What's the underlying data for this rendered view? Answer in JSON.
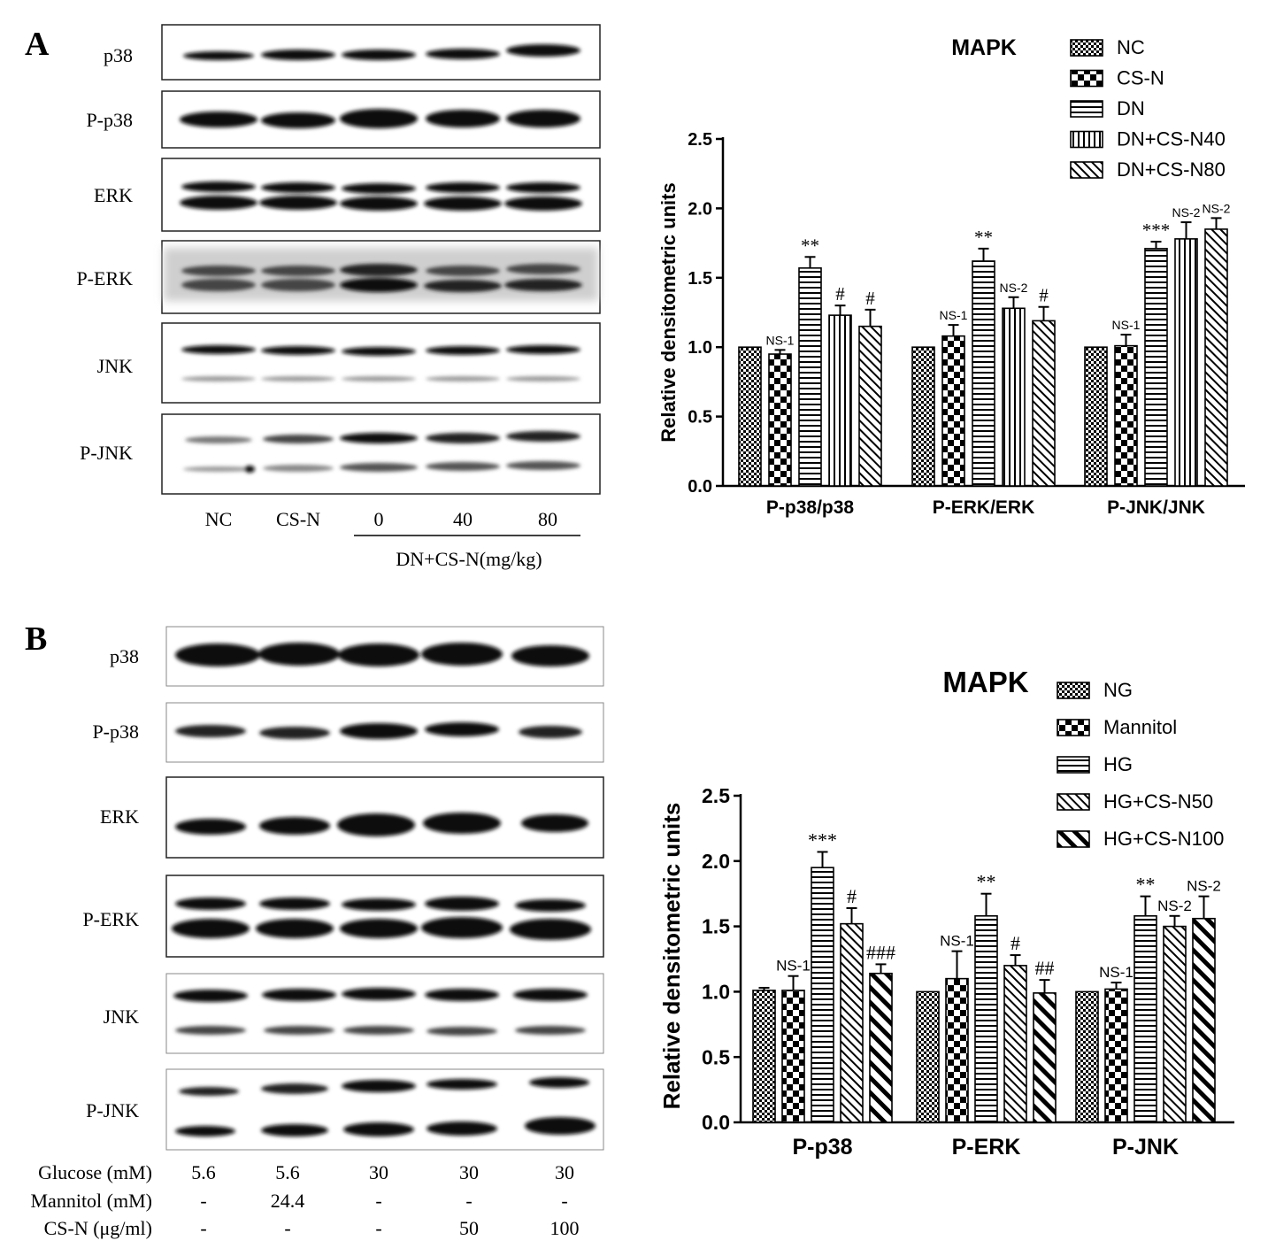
{
  "panels": [
    {
      "letter": "A",
      "blot": {
        "rows": [
          "p38",
          "P-p38",
          "ERK",
          "P-ERK",
          "JNK",
          "P-JNK"
        ],
        "lane_labels": [
          "NC",
          "CS-N",
          "0",
          "40",
          "80"
        ],
        "group_label": "DN+CS-N(mg/kg)"
      },
      "chart_data": {
        "type": "bar",
        "title": "MAPK",
        "ylabel": "Relative densitometric units",
        "xlabel": "",
        "ylim": [
          0,
          2.5
        ],
        "yticks": [
          "0.0",
          "0.5",
          "1.0",
          "1.5",
          "2.0",
          "2.5"
        ],
        "categories": [
          "P-p38/p38",
          "P-ERK/ERK",
          "P-JNK/JNK"
        ],
        "legend_position": "top-right",
        "series": [
          {
            "name": "NC",
            "pattern": "check",
            "values": [
              1.0,
              1.0,
              1.0
            ],
            "errors": [
              0,
              0,
              0
            ],
            "labels": [
              "",
              "",
              ""
            ]
          },
          {
            "name": "CS-N",
            "pattern": "bigcheck",
            "values": [
              0.95,
              1.08,
              1.01
            ],
            "errors": [
              0.03,
              0.08,
              0.08
            ],
            "labels": [
              "NS-1",
              "NS-1",
              "NS-1"
            ]
          },
          {
            "name": "DN",
            "pattern": "hlines",
            "values": [
              1.57,
              1.62,
              1.71
            ],
            "errors": [
              0.08,
              0.09,
              0.05
            ],
            "labels": [
              "**",
              "**",
              "***"
            ]
          },
          {
            "name": "DN+CS-N40",
            "pattern": "vlines",
            "values": [
              1.23,
              1.28,
              1.78
            ],
            "errors": [
              0.07,
              0.08,
              0.12
            ],
            "labels": [
              "#",
              "NS-2",
              "NS-2"
            ]
          },
          {
            "name": "DN+CS-N80",
            "pattern": "diag",
            "values": [
              1.15,
              1.19,
              1.85
            ],
            "errors": [
              0.12,
              0.1,
              0.08
            ],
            "labels": [
              "#",
              "#",
              "NS-2"
            ]
          }
        ]
      }
    },
    {
      "letter": "B",
      "blot": {
        "rows": [
          "p38",
          "P-p38",
          "ERK",
          "P-ERK",
          "JNK",
          "P-JNK"
        ],
        "conditions": [
          {
            "label": "Glucose (mM)",
            "values": [
              "5.6",
              "5.6",
              "30",
              "30",
              "30"
            ]
          },
          {
            "label": "Mannitol (mM)",
            "values": [
              "-",
              "24.4",
              "-",
              "-",
              "-"
            ]
          },
          {
            "label": "CS-N (μg/ml)",
            "values": [
              "-",
              "-",
              "-",
              "50",
              "100"
            ]
          }
        ]
      },
      "chart_data": {
        "type": "bar",
        "title": "MAPK",
        "ylabel": "Relative densitometric units",
        "xlabel": "",
        "ylim": [
          0,
          2.5
        ],
        "yticks": [
          "0.0",
          "0.5",
          "1.0",
          "1.5",
          "2.0",
          "2.5"
        ],
        "categories": [
          "P-p38",
          "P-ERK",
          "P-JNK"
        ],
        "legend_position": "top-right",
        "series": [
          {
            "name": "NG",
            "pattern": "check",
            "values": [
              1.01,
              1.0,
              1.0
            ],
            "errors": [
              0.02,
              0,
              0
            ],
            "labels": [
              "",
              "",
              ""
            ]
          },
          {
            "name": "Mannitol",
            "pattern": "bigcheck",
            "values": [
              1.01,
              1.1,
              1.02
            ],
            "errors": [
              0.11,
              0.21,
              0.05
            ],
            "labels": [
              "NS-1",
              "NS-1",
              "NS-1"
            ]
          },
          {
            "name": "HG",
            "pattern": "hlines",
            "values": [
              1.95,
              1.58,
              1.58
            ],
            "errors": [
              0.12,
              0.17,
              0.15
            ],
            "labels": [
              "***",
              "**",
              "**"
            ]
          },
          {
            "name": "HG+CS-N50",
            "pattern": "diag",
            "values": [
              1.52,
              1.2,
              1.5
            ],
            "errors": [
              0.12,
              0.08,
              0.08
            ],
            "labels": [
              "#",
              "#",
              "NS-2"
            ]
          },
          {
            "name": "HG+CS-N100",
            "pattern": "thickdiag",
            "values": [
              1.14,
              0.99,
              1.56
            ],
            "errors": [
              0.07,
              0.1,
              0.17
            ],
            "labels": [
              "###",
              "##",
              "NS-2"
            ]
          }
        ]
      }
    }
  ]
}
